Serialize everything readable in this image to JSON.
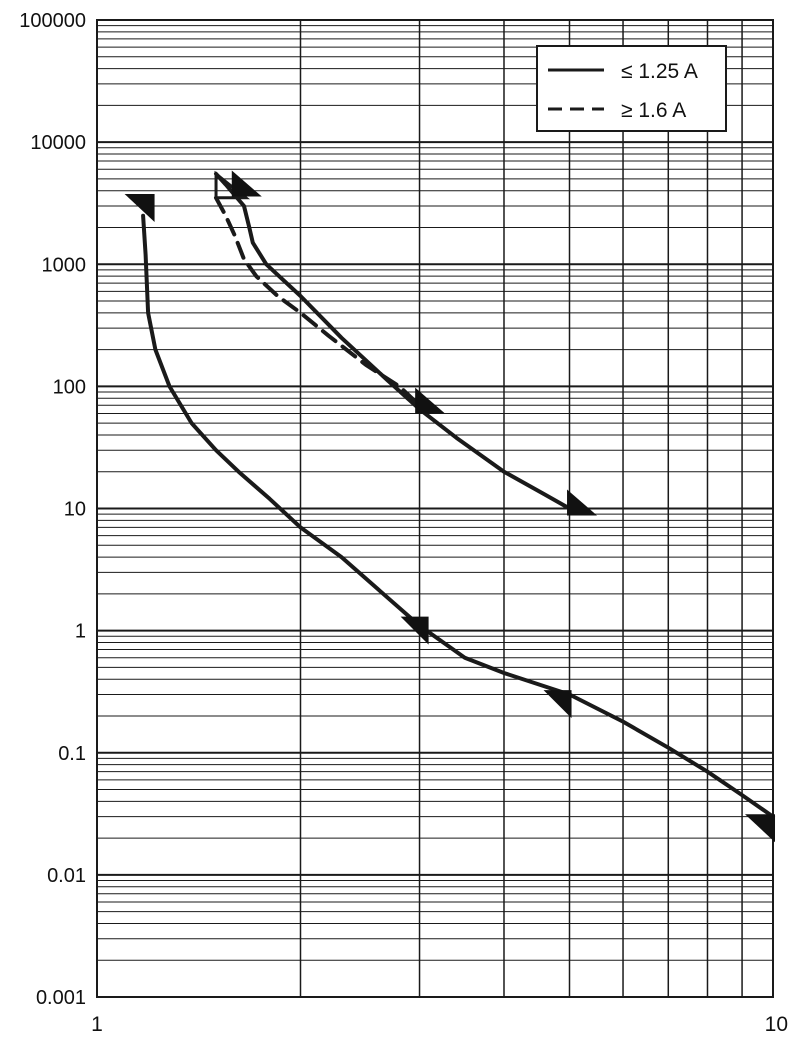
{
  "chart_data": {
    "type": "line",
    "title": "",
    "xlabel": "",
    "ylabel": "",
    "x_scale": "log",
    "y_scale": "log",
    "xlim": [
      1,
      10
    ],
    "ylim": [
      0.001,
      100000
    ],
    "grid": true,
    "legend_position": "top-right",
    "x_ticks": [
      {
        "value": 1,
        "label": "1"
      },
      {
        "value": 10,
        "label": "10"
      }
    ],
    "y_ticks": [
      {
        "value": 100000,
        "label": "100000"
      },
      {
        "value": 10000,
        "label": "10000"
      },
      {
        "value": 1000,
        "label": "1000"
      },
      {
        "value": 100,
        "label": "100"
      },
      {
        "value": 10,
        "label": "10"
      },
      {
        "value": 1,
        "label": "1"
      },
      {
        "value": 0.1,
        "label": "0.1"
      },
      {
        "value": 0.01,
        "label": "0.01"
      },
      {
        "value": 0.001,
        "label": "0.001"
      }
    ],
    "series": [
      {
        "name": "≤ 1.25 A",
        "style": "solid",
        "color": "#1a1a1a",
        "curves": [
          {
            "points": [
              [
                1.17,
                2500
              ],
              [
                1.18,
                1200
              ],
              [
                1.19,
                400
              ],
              [
                1.22,
                200
              ],
              [
                1.28,
                100
              ],
              [
                1.38,
                50
              ],
              [
                1.5,
                30
              ],
              [
                1.62,
                20
              ],
              [
                1.8,
                12
              ],
              [
                2.0,
                7
              ],
              [
                2.3,
                4
              ],
              [
                2.6,
                2.2
              ],
              [
                3.0,
                1.1
              ],
              [
                3.5,
                0.6
              ],
              [
                4.0,
                0.45
              ],
              [
                5.0,
                0.3
              ],
              [
                6.0,
                0.18
              ],
              [
                7.0,
                0.11
              ],
              [
                8.0,
                0.07
              ],
              [
                9.0,
                0.045
              ],
              [
                10.0,
                0.03
              ]
            ]
          },
          {
            "points": [
              [
                1.5,
                5500
              ],
              [
                1.55,
                4500
              ],
              [
                1.65,
                3000
              ],
              [
                1.68,
                2000
              ],
              [
                1.7,
                1500
              ],
              [
                1.78,
                1000
              ],
              [
                2.0,
                550
              ],
              [
                2.3,
                250
              ],
              [
                2.7,
                110
              ],
              [
                3.0,
                65
              ],
              [
                3.4,
                38
              ],
              [
                4.0,
                20
              ],
              [
                4.6,
                13
              ],
              [
                5.0,
                10
              ]
            ]
          }
        ]
      },
      {
        "name": "≥ 1.6 A",
        "style": "dashed",
        "color": "#1a1a1a",
        "curves": [
          {
            "points": [
              [
                1.5,
                3500
              ],
              [
                1.55,
                2500
              ],
              [
                1.6,
                1700
              ],
              [
                1.65,
                1100
              ],
              [
                1.72,
                800
              ],
              [
                1.85,
                550
              ],
              [
                2.0,
                400
              ],
              [
                2.2,
                260
              ],
              [
                2.5,
                150
              ],
              [
                2.8,
                100
              ],
              [
                3.0,
                70
              ]
            ]
          }
        ]
      }
    ],
    "markers": [
      {
        "x": 1.16,
        "y": 3000,
        "direction": "down-right"
      },
      {
        "x": 1.66,
        "y": 4500,
        "direction": "right"
      },
      {
        "x": 3.1,
        "y": 75,
        "direction": "right"
      },
      {
        "x": 5.2,
        "y": 11,
        "direction": "right"
      },
      {
        "x": 2.95,
        "y": 1.0,
        "direction": "down"
      },
      {
        "x": 4.8,
        "y": 0.25,
        "direction": "down"
      },
      {
        "x": 9.6,
        "y": 0.025,
        "direction": "down-right"
      }
    ]
  }
}
